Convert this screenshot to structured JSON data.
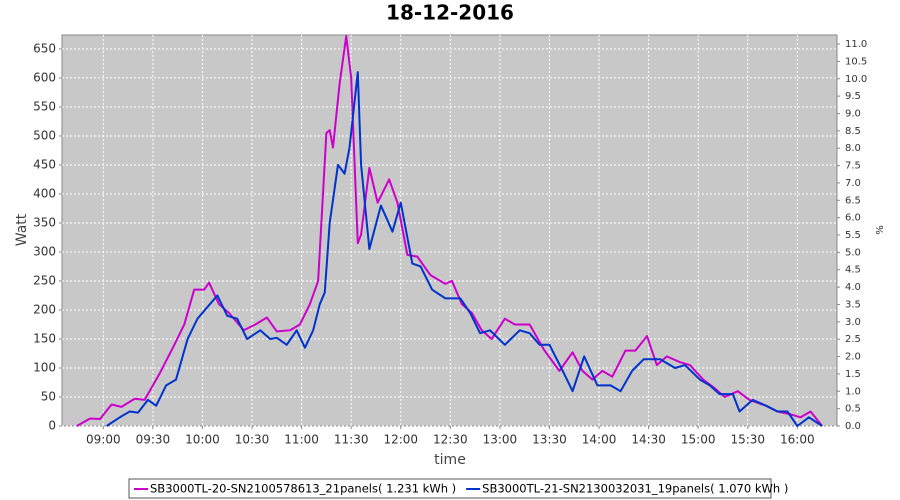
{
  "chart_data": {
    "type": "line",
    "title": "18-12-2016",
    "x_label": "time",
    "y_label": "Watt",
    "y2_label": "%",
    "xlim": [
      "08:35",
      "16:24"
    ],
    "xticks": [
      "09:00",
      "09:30",
      "10:00",
      "10:30",
      "11:00",
      "11:30",
      "12:00",
      "12:30",
      "13:00",
      "13:30",
      "14:00",
      "14:30",
      "15:00",
      "15:30",
      "16:00"
    ],
    "ylim": [
      0,
      674
    ],
    "yticks": [
      0,
      50,
      100,
      150,
      200,
      250,
      300,
      350,
      400,
      450,
      500,
      550,
      600,
      650
    ],
    "y2lim": [
      0,
      11.26
    ],
    "y2ticks": [
      {
        "value": 0,
        "label": "0.0"
      },
      0.5,
      {
        "value": 1,
        "label": "1.0"
      },
      1.5,
      {
        "value": 2,
        "label": "2.0"
      },
      2.5,
      {
        "value": 3,
        "label": "3.0"
      },
      3.5,
      {
        "value": 4,
        "label": "4.0"
      },
      4.5,
      {
        "value": 5,
        "label": "5.0"
      },
      5.5,
      {
        "value": 6,
        "label": "6.0"
      },
      6.5,
      {
        "value": 7,
        "label": "7.0"
      },
      7.5,
      {
        "value": 8,
        "label": "8.0"
      },
      8.5,
      {
        "value": 9,
        "label": "9.0"
      },
      9.5,
      {
        "value": 10,
        "label": "10.0"
      },
      10.5,
      {
        "value": 11,
        "label": "11.0"
      }
    ],
    "grid": true,
    "legend": "bottom",
    "series": [
      {
        "name": "SB3000TL-20-SN2100578613_21panels( 1.231 kWh )",
        "color": "#cc00cc",
        "x": [
          "08:44",
          "08:52",
          "08:58",
          "09:05",
          "09:11",
          "09:19",
          "09:25",
          "09:34",
          "09:43",
          "09:49",
          "09:55",
          "10:01",
          "10:04",
          "10:10",
          "10:16",
          "10:25",
          "10:32",
          "10:39",
          "10:45",
          "10:53",
          "10:59",
          "11:05",
          "11:10",
          "11:15",
          "11:17",
          "11:19",
          "11:23",
          "11:27",
          "11:30",
          "11:34",
          "11:36",
          "11:41",
          "11:46",
          "11:53",
          "11:58",
          "12:04",
          "12:10",
          "12:18",
          "12:27",
          "12:31",
          "12:37",
          "12:43",
          "12:49",
          "12:55",
          "13:03",
          "13:09",
          "13:18",
          "13:27",
          "13:36",
          "13:44",
          "13:50",
          "13:56",
          "14:02",
          "14:08",
          "14:16",
          "14:22",
          "14:29",
          "14:35",
          "14:41",
          "14:49",
          "14:55",
          "15:03",
          "15:10",
          "15:16",
          "15:24",
          "15:31",
          "15:41",
          "15:48",
          "15:56",
          "16:02",
          "16:08",
          "16:15"
        ],
        "values": [
          0,
          13,
          12,
          37,
          33,
          47,
          45,
          90,
          140,
          175,
          235,
          235,
          247,
          210,
          195,
          165,
          175,
          187,
          163,
          165,
          175,
          210,
          250,
          505,
          510,
          480,
          590,
          672,
          600,
          315,
          330,
          445,
          385,
          425,
          385,
          295,
          292,
          260,
          245,
          250,
          210,
          195,
          165,
          150,
          185,
          175,
          175,
          130,
          95,
          127,
          95,
          80,
          95,
          85,
          130,
          130,
          155,
          105,
          120,
          110,
          105,
          80,
          65,
          50,
          60,
          45,
          35,
          25,
          20,
          15,
          25,
          0
        ]
      },
      {
        "name": "SB3000TL-21-SN2130032031_19panels( 1.070 kWh )",
        "color": "#0033cc",
        "x": [
          "09:02",
          "09:10",
          "09:16",
          "09:21",
          "09:27",
          "09:32",
          "09:38",
          "09:44",
          "09:51",
          "09:57",
          "10:03",
          "10:09",
          "10:15",
          "10:21",
          "10:27",
          "10:35",
          "10:41",
          "10:45",
          "10:51",
          "10:57",
          "11:02",
          "11:07",
          "11:11",
          "11:14",
          "11:17",
          "11:22",
          "11:26",
          "11:29",
          "11:34",
          "11:36",
          "11:41",
          "11:48",
          "11:55",
          "12:00",
          "12:07",
          "12:12",
          "12:19",
          "12:27",
          "12:36",
          "12:42",
          "12:48",
          "12:54",
          "13:03",
          "13:12",
          "13:18",
          "13:24",
          "13:30",
          "13:38",
          "13:44",
          "13:51",
          "13:59",
          "14:07",
          "14:13",
          "14:20",
          "14:27",
          "14:37",
          "14:46",
          "14:52",
          "15:01",
          "15:07",
          "15:13",
          "15:21",
          "15:25",
          "15:33",
          "15:41",
          "15:48",
          "15:54",
          "16:00",
          "16:07",
          "16:15"
        ],
        "values": [
          0,
          15,
          25,
          23,
          45,
          35,
          70,
          80,
          150,
          185,
          205,
          225,
          190,
          185,
          150,
          165,
          150,
          152,
          140,
          165,
          135,
          165,
          210,
          230,
          350,
          450,
          435,
          480,
          610,
          450,
          305,
          380,
          335,
          385,
          280,
          275,
          235,
          220,
          220,
          195,
          160,
          165,
          140,
          165,
          160,
          140,
          140,
          95,
          60,
          120,
          70,
          70,
          60,
          95,
          115,
          115,
          100,
          105,
          80,
          70,
          55,
          55,
          25,
          45,
          35,
          25,
          25,
          0,
          15,
          0
        ]
      }
    ]
  }
}
